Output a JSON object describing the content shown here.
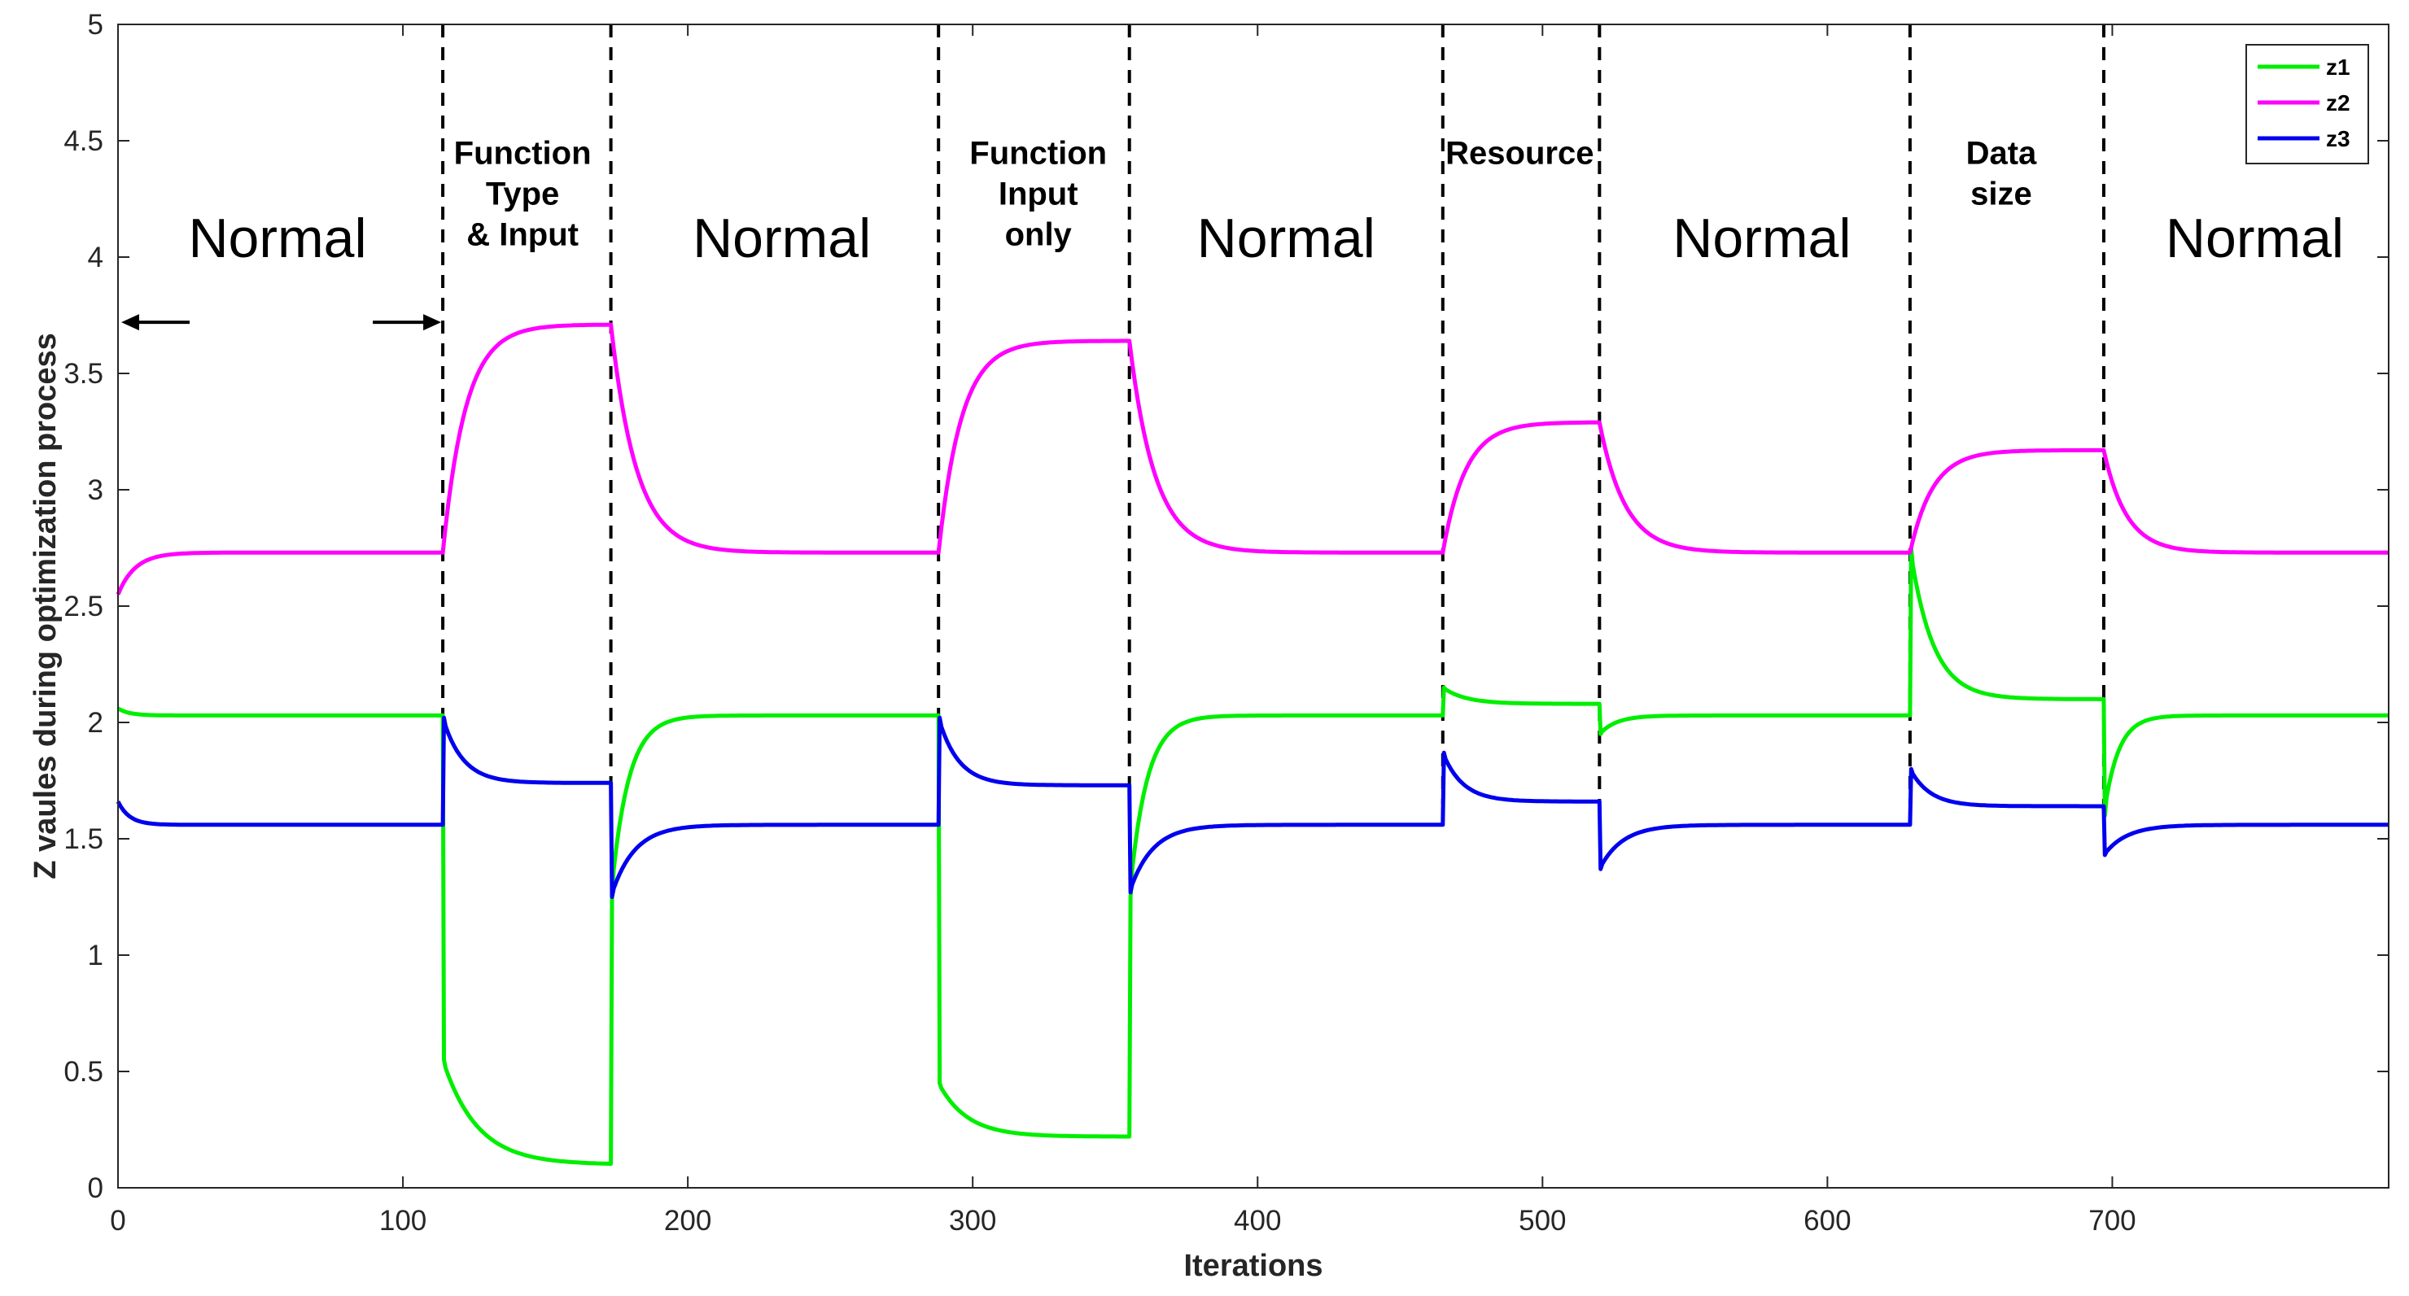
{
  "chart_data": {
    "type": "line",
    "title": "",
    "xlabel": "Iterations",
    "ylabel": "Z vaules during optimization process",
    "xlim": [
      0,
      797
    ],
    "ylim": [
      0,
      5
    ],
    "xticks": [
      0,
      100,
      200,
      300,
      400,
      500,
      600,
      700
    ],
    "yticks": [
      0,
      0.5,
      1,
      1.5,
      2,
      2.5,
      3,
      3.5,
      4,
      4.5,
      5
    ],
    "ytick_labels": [
      "0",
      "0.5",
      "1",
      "1.5",
      "2",
      "2.5",
      "3",
      "3.5",
      "4",
      "4.5",
      "5"
    ],
    "grid": false,
    "legend_position": "top-right",
    "boundaries": [
      114,
      173,
      288,
      355,
      465,
      520,
      629,
      697
    ],
    "regions": [
      {
        "lines": [
          "Normal"
        ],
        "kind": "normal",
        "x": 56,
        "y": 4.0
      },
      {
        "lines": [
          "Function",
          "Type",
          "& Input"
        ],
        "kind": "event",
        "x": 142,
        "y": 4.4
      },
      {
        "lines": [
          "Normal"
        ],
        "kind": "normal",
        "x": 233,
        "y": 4.0
      },
      {
        "lines": [
          "Function",
          "Input",
          "only"
        ],
        "kind": "event",
        "x": 323,
        "y": 4.4
      },
      {
        "lines": [
          "Normal"
        ],
        "kind": "normal",
        "x": 410,
        "y": 4.0
      },
      {
        "lines": [
          "Resource"
        ],
        "kind": "event",
        "x": 492,
        "y": 4.4
      },
      {
        "lines": [
          "Normal"
        ],
        "kind": "normal",
        "x": 577,
        "y": 4.0
      },
      {
        "lines": [
          "Data",
          "size"
        ],
        "kind": "event",
        "x": 661,
        "y": 4.4
      },
      {
        "lines": [
          "Normal"
        ],
        "kind": "normal",
        "x": 750,
        "y": 4.0
      }
    ],
    "annotation_arrow": {
      "from": 0,
      "to": 114,
      "y": 3.72
    },
    "series": [
      {
        "name": "z1",
        "color": "#00ee00",
        "start": 2.06,
        "segments": [
          {
            "end": 114,
            "target": 2.03,
            "tau": 4
          },
          {
            "end": 173,
            "target": 0.1,
            "tau": 12
          },
          {
            "end": 288,
            "target": 2.03,
            "tau": 6
          },
          {
            "end": 355,
            "target": 0.22,
            "tau": 10
          },
          {
            "end": 465,
            "target": 2.03,
            "tau": 6
          },
          {
            "end": 520,
            "target": 2.08,
            "tau": 8
          },
          {
            "end": 629,
            "target": 2.03,
            "tau": 6
          },
          {
            "end": 697,
            "target": 2.1,
            "tau": 8
          },
          {
            "end": 797,
            "target": 2.03,
            "tau": 5
          }
        ],
        "jumps": [
          {
            "at": 114,
            "to": 0.55
          },
          {
            "at": 173,
            "to": 1.25
          },
          {
            "at": 288,
            "to": 0.45
          },
          {
            "at": 355,
            "to": 1.25
          },
          {
            "at": 465,
            "to": 2.15
          },
          {
            "at": 520,
            "to": 1.95
          },
          {
            "at": 629,
            "to": 2.75
          },
          {
            "at": 697,
            "to": 1.6
          }
        ]
      },
      {
        "name": "z2",
        "color": "#ff00ff",
        "start": 2.55,
        "segments": [
          {
            "end": 114,
            "target": 2.73,
            "tau": 6
          },
          {
            "end": 173,
            "target": 3.71,
            "tau": 8
          },
          {
            "end": 288,
            "target": 2.73,
            "tau": 9
          },
          {
            "end": 355,
            "target": 3.64,
            "tau": 8
          },
          {
            "end": 465,
            "target": 2.73,
            "tau": 9
          },
          {
            "end": 520,
            "target": 3.29,
            "tau": 8
          },
          {
            "end": 629,
            "target": 2.73,
            "tau": 9
          },
          {
            "end": 697,
            "target": 3.17,
            "tau": 8
          },
          {
            "end": 797,
            "target": 2.73,
            "tau": 8
          }
        ],
        "jumps": []
      },
      {
        "name": "z3",
        "color": "#0000ee",
        "start": 1.66,
        "segments": [
          {
            "end": 114,
            "target": 1.56,
            "tau": 4
          },
          {
            "end": 173,
            "target": 1.74,
            "tau": 7
          },
          {
            "end": 288,
            "target": 1.56,
            "tau": 8
          },
          {
            "end": 355,
            "target": 1.73,
            "tau": 7
          },
          {
            "end": 465,
            "target": 1.56,
            "tau": 8
          },
          {
            "end": 520,
            "target": 1.66,
            "tau": 7
          },
          {
            "end": 629,
            "target": 1.56,
            "tau": 8
          },
          {
            "end": 697,
            "target": 1.64,
            "tau": 7
          },
          {
            "end": 797,
            "target": 1.56,
            "tau": 8
          }
        ],
        "jumps": [
          {
            "at": 114,
            "to": 2.02
          },
          {
            "at": 173,
            "to": 1.25
          },
          {
            "at": 288,
            "to": 2.02
          },
          {
            "at": 355,
            "to": 1.27
          },
          {
            "at": 465,
            "to": 1.87
          },
          {
            "at": 520,
            "to": 1.37
          },
          {
            "at": 629,
            "to": 1.8
          },
          {
            "at": 697,
            "to": 1.43
          }
        ]
      }
    ]
  }
}
